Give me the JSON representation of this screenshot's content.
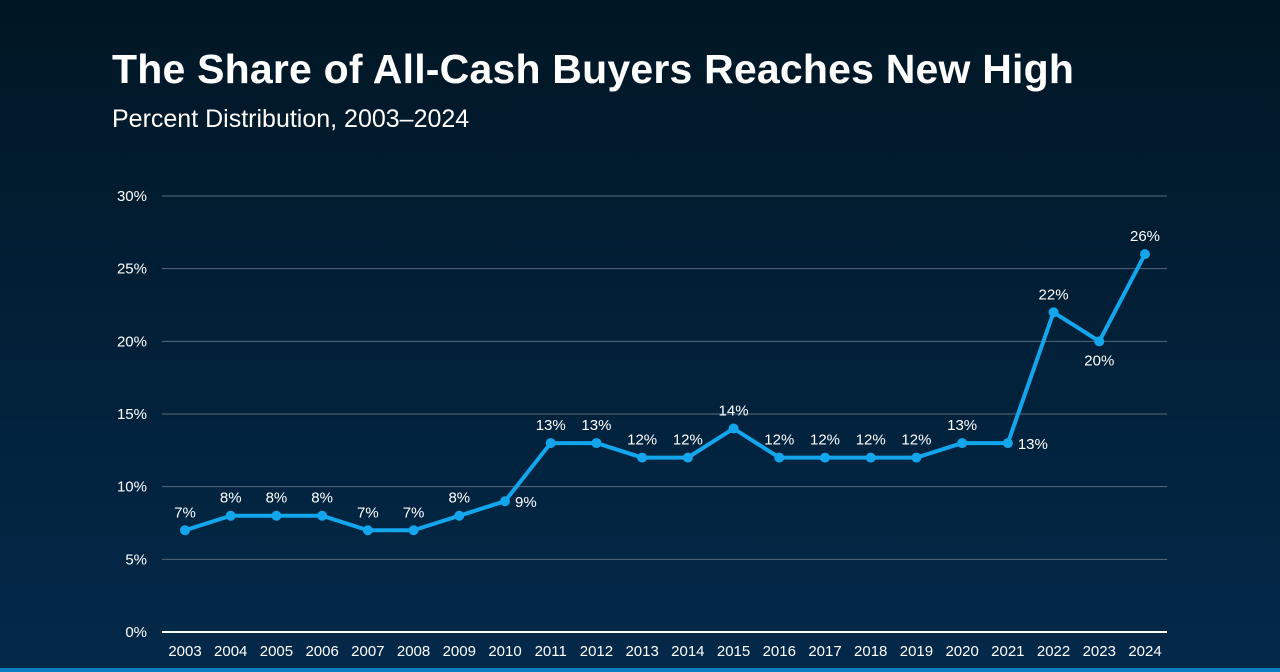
{
  "title": "The Share of All-Cash Buyers Reaches New High",
  "subtitle": "Percent Distribution, 2003–2024",
  "colors": {
    "line": "#13a6ec",
    "grid": "#56697a",
    "axis": "#ffffff",
    "text": "#ffffff"
  },
  "chart_data": {
    "type": "line",
    "title": "The Share of All-Cash Buyers Reaches New High",
    "subtitle": "Percent Distribution, 2003–2024",
    "xlabel": "",
    "ylabel": "",
    "categories": [
      "2003",
      "2004",
      "2005",
      "2006",
      "2007",
      "2008",
      "2009",
      "2010",
      "2011",
      "2012",
      "2013",
      "2014",
      "2015",
      "2016",
      "2017",
      "2018",
      "2019",
      "2020",
      "2021",
      "2022",
      "2023",
      "2024"
    ],
    "values": [
      7,
      8,
      8,
      8,
      7,
      7,
      8,
      9,
      13,
      13,
      12,
      12,
      14,
      12,
      12,
      12,
      12,
      13,
      13,
      22,
      20,
      26
    ],
    "data_labels": [
      "7%",
      "8%",
      "8%",
      "8%",
      "7%",
      "7%",
      "8%",
      "9%",
      "13%",
      "13%",
      "12%",
      "12%",
      "14%",
      "12%",
      "12%",
      "12%",
      "12%",
      "13%",
      "13%",
      "22%",
      "20%",
      "26%"
    ],
    "label_positions": [
      "above",
      "above",
      "above",
      "above",
      "above",
      "above",
      "above",
      "right",
      "above",
      "above",
      "above",
      "above",
      "above",
      "above",
      "above",
      "above",
      "above",
      "above",
      "right",
      "above",
      "below",
      "above"
    ],
    "ylim": [
      0,
      30
    ],
    "yticks": [
      0,
      5,
      10,
      15,
      20,
      25,
      30
    ],
    "ytick_labels": [
      "0%",
      "5%",
      "10%",
      "15%",
      "20%",
      "25%",
      "30%"
    ],
    "grid": true,
    "legend": "none"
  }
}
